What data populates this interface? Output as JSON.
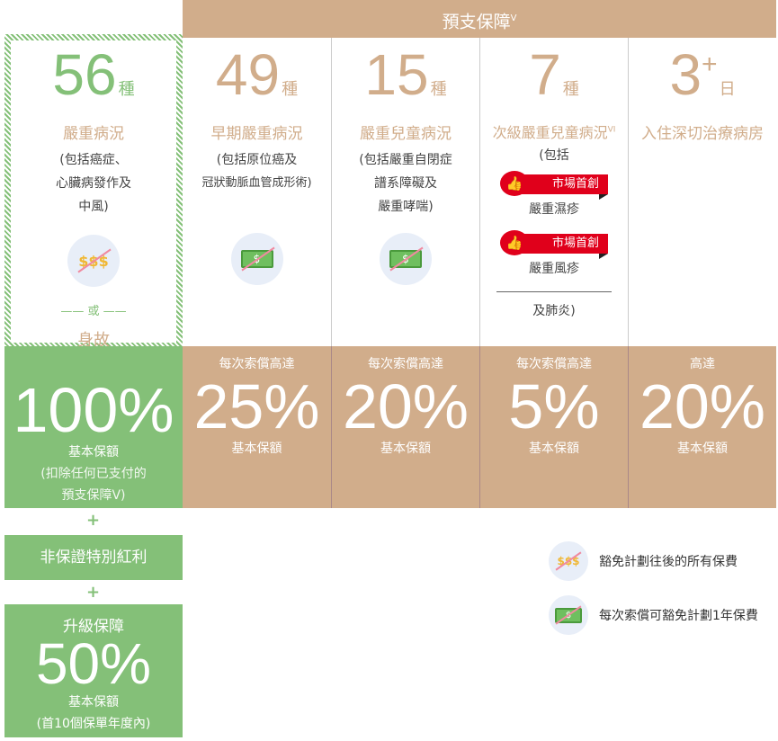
{
  "header": {
    "title": "預支保障",
    "title_sup": "V"
  },
  "columns": [
    {
      "number": "56",
      "unit": "種",
      "title": "嚴重病況",
      "desc": [
        "(包括癌症、",
        "心臟病發作及",
        "中風)"
      ],
      "icon": "money-bags-crossed",
      "or": "或",
      "alt": "身故",
      "pre": "",
      "pct": "100%",
      "base": "基本保額",
      "note": [
        "(扣除任何已支付的",
        "預支保障V)"
      ]
    },
    {
      "number": "49",
      "unit": "種",
      "title": "早期嚴重病況",
      "desc": [
        "(包括原位癌及",
        "冠狀動脈血管成形術)"
      ],
      "icon": "banknote-crossed",
      "pre": "每次索償高達",
      "pct": "25%",
      "base": "基本保額"
    },
    {
      "number": "15",
      "unit": "種",
      "title": "嚴重兒童病況",
      "desc": [
        "(包括嚴重自閉症",
        "譜系障礙及",
        "嚴重哮喘)"
      ],
      "icon": "banknote-crossed",
      "pre": "每次索償高達",
      "pct": "20%",
      "base": "基本保額"
    },
    {
      "number": "7",
      "unit": "種",
      "title": "次級嚴重兒童病況",
      "title_sup": "VI",
      "desc_pre": "(包括",
      "tags": [
        {
          "label": "市場首創",
          "item": "嚴重濕疹"
        },
        {
          "label": "市場首創",
          "item": "嚴重風疹"
        }
      ],
      "desc_post": "及肺炎)",
      "pre": "每次索償高達",
      "pct": "5%",
      "base": "基本保額"
    },
    {
      "number": "3",
      "number_sup": "+",
      "unit": "日",
      "title": "入住深切治療病房",
      "pre": "高達",
      "pct": "20%",
      "base": "基本保額"
    }
  ],
  "bonus": {
    "plus": "+",
    "label": "非保證特別紅利"
  },
  "upgrade": {
    "plus": "+",
    "title": "升級保障",
    "pct": "50%",
    "base": "基本保額",
    "note": "(首10個保單年度內)"
  },
  "legend": [
    {
      "icon": "money-bags-crossed",
      "label": "豁免計劃往後的所有保費"
    },
    {
      "icon": "banknote-crossed",
      "label": "每次索償可豁免計劃1年保費"
    }
  ],
  "colors": {
    "green": "#84c078",
    "tan": "#d1ad8b",
    "red": "#e0001b"
  }
}
